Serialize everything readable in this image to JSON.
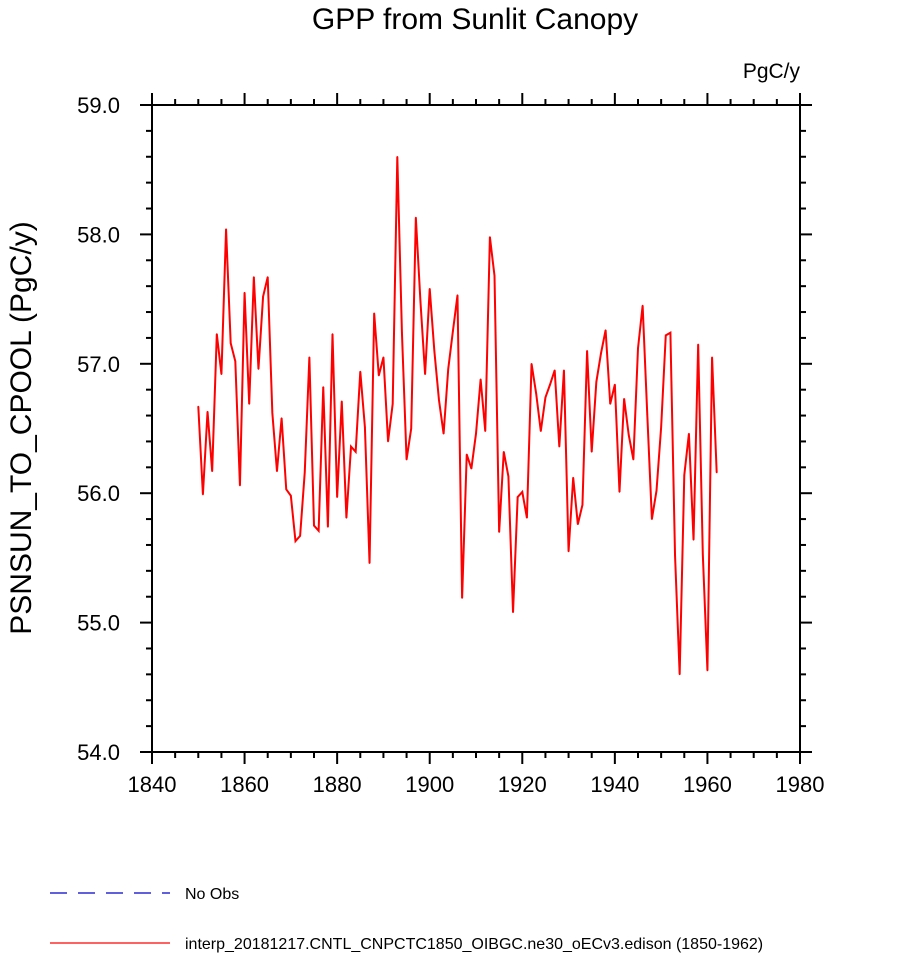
{
  "chart_data": {
    "type": "line",
    "title": "GPP from Sunlit Canopy",
    "units_label": "PgC/y",
    "xlabel": "",
    "ylabel": "PSNSUN_TO_CPOOL  (PgC/y)",
    "xlim": [
      1840,
      1980
    ],
    "ylim": [
      54.0,
      59.0
    ],
    "x_ticks": [
      1840,
      1860,
      1880,
      1900,
      1920,
      1940,
      1960,
      1980
    ],
    "x_tick_labels": [
      "1840",
      "1860",
      "1880",
      "1900",
      "1920",
      "1940",
      "1960",
      "1980"
    ],
    "y_ticks": [
      54.0,
      55.0,
      56.0,
      57.0,
      58.0,
      59.0
    ],
    "y_tick_labels": [
      "54.0",
      "55.0",
      "56.0",
      "57.0",
      "58.0",
      "59.0"
    ],
    "grid": false,
    "legend_position": "bottom",
    "series": [
      {
        "name": "interp_20181217.CNTL_CNPCTC1850_OIBGC.ne30_oECv3.edison (1850-1962)",
        "color": "#ff0000",
        "style": "solid",
        "x_start": 1850,
        "x_step": 1,
        "values": [
          56.67,
          55.99,
          56.63,
          56.17,
          57.23,
          56.92,
          58.04,
          57.16,
          57.02,
          56.06,
          57.55,
          56.69,
          57.67,
          56.96,
          57.52,
          57.67,
          56.62,
          56.17,
          56.58,
          56.03,
          55.98,
          55.63,
          55.67,
          56.16,
          57.05,
          55.75,
          55.71,
          56.82,
          55.74,
          57.23,
          55.97,
          56.71,
          55.81,
          56.36,
          56.32,
          56.94,
          56.51,
          55.46,
          57.39,
          56.91,
          57.05,
          56.4,
          56.69,
          58.6,
          57.24,
          56.26,
          56.5,
          58.13,
          57.48,
          56.92,
          57.58,
          57.1,
          56.72,
          56.46,
          56.96,
          57.25,
          57.53,
          55.19,
          56.3,
          56.19,
          56.46,
          56.88,
          56.48,
          57.98,
          57.68,
          55.7,
          56.32,
          56.13,
          55.08,
          55.97,
          56.01,
          55.81,
          57.0,
          56.77,
          56.48,
          56.74,
          56.84,
          56.95,
          56.36,
          56.95,
          55.55,
          56.12,
          55.76,
          55.91,
          57.1,
          56.32,
          56.86,
          57.08,
          57.26,
          56.69,
          56.84,
          56.01,
          56.73,
          56.45,
          56.26,
          57.12,
          57.45,
          56.61,
          55.8,
          56.02,
          56.51,
          57.22,
          57.24,
          55.52,
          54.6,
          56.14,
          56.46,
          55.64,
          57.15,
          55.53,
          54.63,
          57.05,
          56.16
        ]
      },
      {
        "name": "No Obs",
        "color": "#0000cc",
        "style": "dashed",
        "values": []
      }
    ]
  }
}
